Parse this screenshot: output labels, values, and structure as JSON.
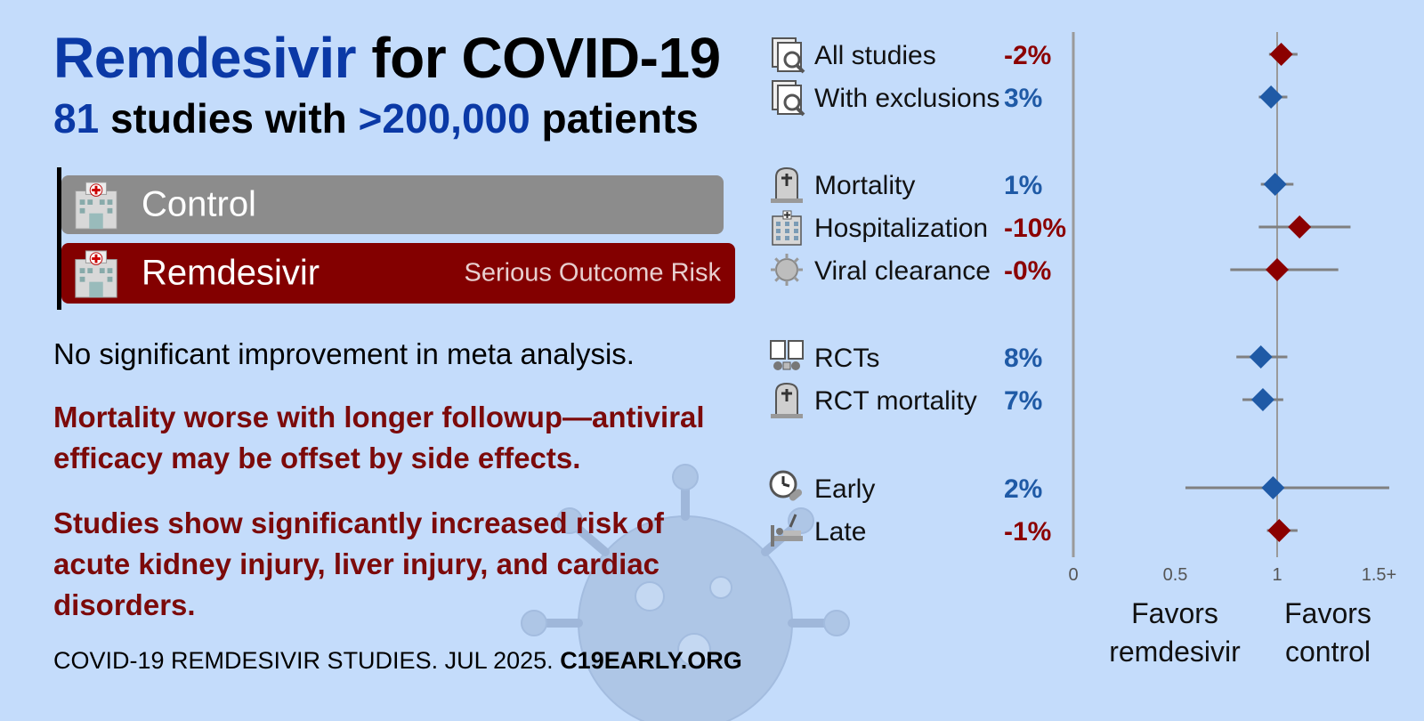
{
  "header": {
    "drug": "Remdesivir",
    "title_rest": "for COVID-19",
    "study_count": "81",
    "studies_text": "studies with",
    "patients_count": ">200,000",
    "patients_text": "patients"
  },
  "bars": {
    "control_label": "Control",
    "treatment_label": "Remdesivir",
    "risk_label": "Serious Outcome Risk"
  },
  "findings": {
    "line1": "No significant improvement in meta analysis.",
    "line2": "Mortality worse with longer followup—antiviral efficacy may be offset by side effects.",
    "line3": "Studies show significantly increased risk of acute kidney injury, liver injury, and cardiac disorders."
  },
  "footer": {
    "text": "COVID-19 REMDESIVIR STUDIES. JUL 2025.",
    "site": "C19EARLY.ORG"
  },
  "colors": {
    "improvement": "#1f5aa6",
    "worse": "#8b0000",
    "title_blue": "#0b39a6",
    "background": "#c4dcfb"
  },
  "chart_data": {
    "type": "forest",
    "xlim": [
      0,
      1.5
    ],
    "xticks": [
      0,
      0.5,
      1,
      1.5
    ],
    "xtick_labels": [
      "0",
      "0.5",
      "1",
      "1.5+"
    ],
    "reference_line": 1,
    "favors_left": "Favors remdesivir",
    "favors_right": "Favors control",
    "rows": [
      {
        "label": "All studies",
        "icon": "studies-icon",
        "pct": "-2%",
        "rr": 1.02,
        "ci": [
          0.96,
          1.1
        ],
        "color": "#8b0000",
        "group": 0
      },
      {
        "label": "With exclusions",
        "icon": "studies-icon",
        "pct": "3%",
        "rr": 0.97,
        "ci": [
          0.91,
          1.05
        ],
        "color": "#1f5aa6",
        "group": 0
      },
      {
        "label": "Mortality",
        "icon": "tombstone-icon",
        "pct": "1%",
        "rr": 0.99,
        "ci": [
          0.92,
          1.08
        ],
        "color": "#1f5aa6",
        "group": 1
      },
      {
        "label": "Hospitalization",
        "icon": "hospital-icon",
        "pct": "-10%",
        "rr": 1.11,
        "ci": [
          0.91,
          1.36
        ],
        "color": "#8b0000",
        "group": 1
      },
      {
        "label": "Viral clearance",
        "icon": "virus-icon",
        "pct": "-0%",
        "rr": 1.0,
        "ci": [
          0.77,
          1.3
        ],
        "color": "#8b0000",
        "group": 1
      },
      {
        "label": "RCTs",
        "icon": "rct-icon",
        "pct": "8%",
        "rr": 0.92,
        "ci": [
          0.8,
          1.05
        ],
        "color": "#1f5aa6",
        "group": 2
      },
      {
        "label": "RCT mortality",
        "icon": "tombstone-icon",
        "pct": "7%",
        "rr": 0.93,
        "ci": [
          0.83,
          1.03
        ],
        "color": "#1f5aa6",
        "group": 2
      },
      {
        "label": "Early",
        "icon": "early-icon",
        "pct": "2%",
        "rr": 0.98,
        "ci": [
          0.55,
          1.55
        ],
        "color": "#1f5aa6",
        "group": 3
      },
      {
        "label": "Late",
        "icon": "late-icon",
        "pct": "-1%",
        "rr": 1.01,
        "ci": [
          0.95,
          1.1
        ],
        "color": "#8b0000",
        "group": 3
      }
    ]
  }
}
